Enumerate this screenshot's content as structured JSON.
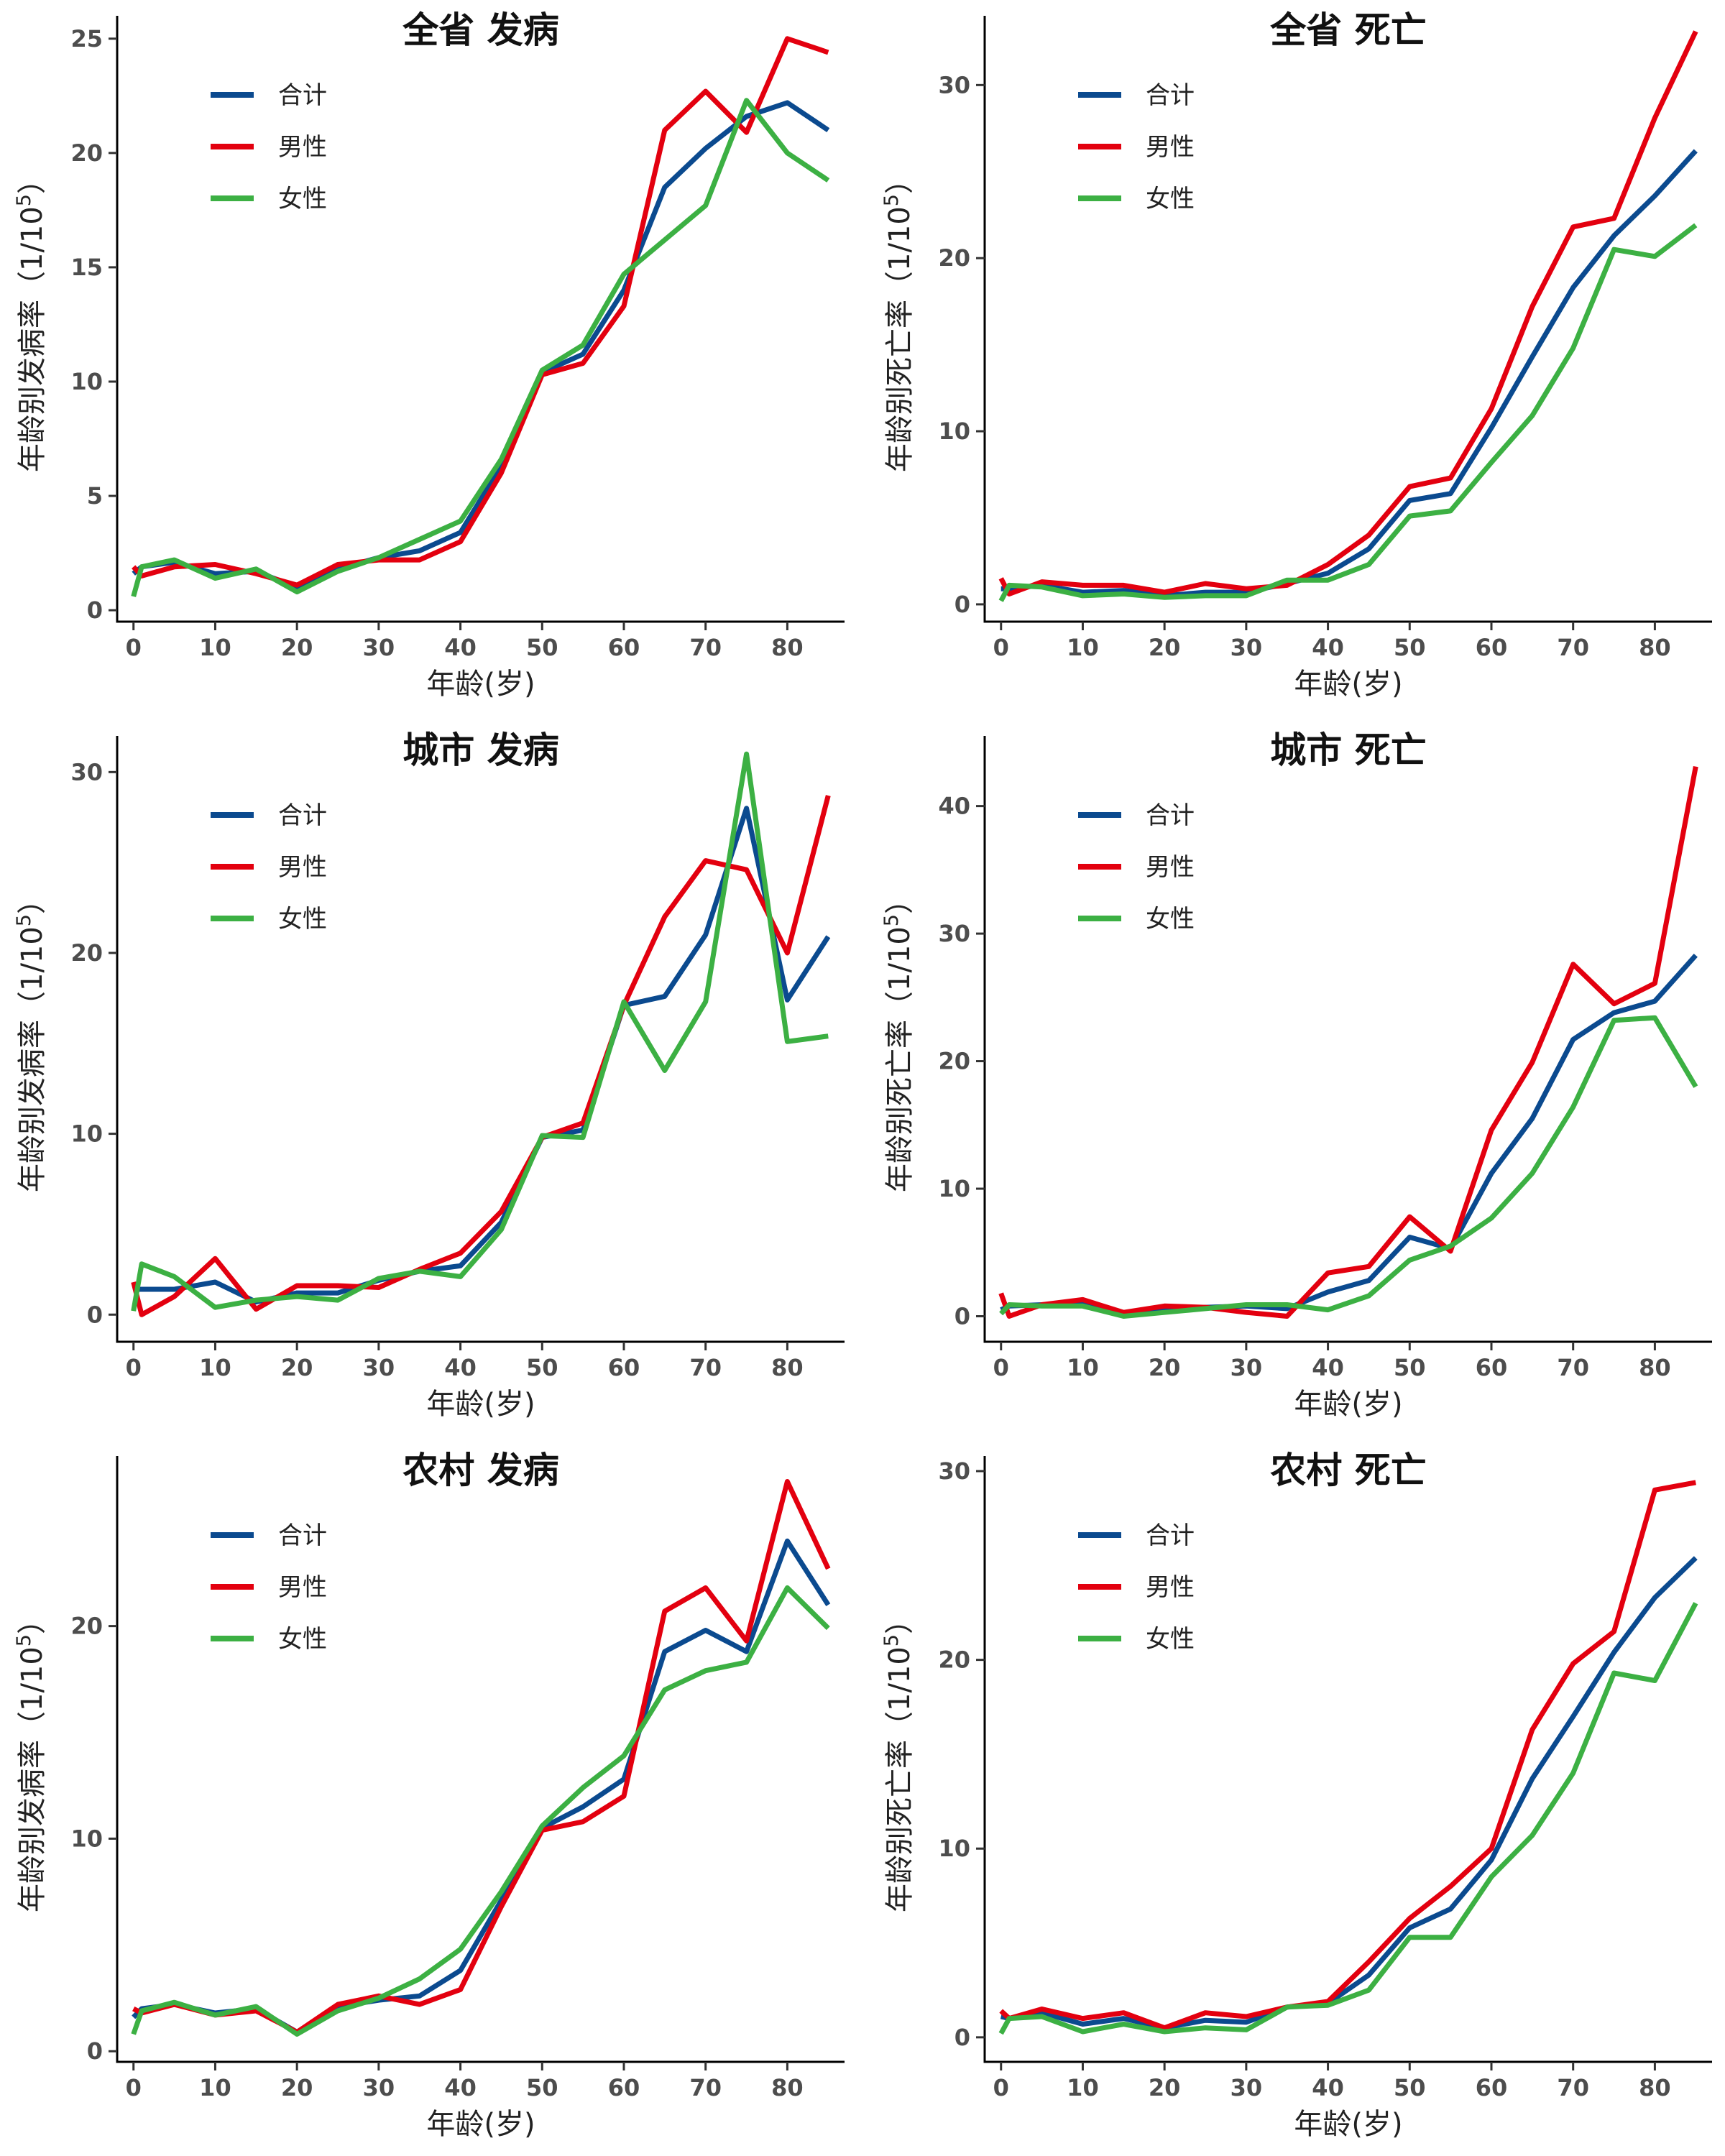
{
  "chart_data": [
    {
      "type": "line",
      "title": "全省 发病",
      "xlabel": "年龄(岁)",
      "ylabel": "年龄别发病率（1/10⁵）",
      "ylabel_main": "年龄别发病率（1/10",
      "ylabel_sup": "5",
      "ylabel_close": "）",
      "xlim": [
        -2,
        87
      ],
      "ylim": [
        -0.5,
        26
      ],
      "xticks": [
        0,
        10,
        20,
        30,
        40,
        50,
        60,
        70,
        80
      ],
      "yticks": [
        0,
        5,
        10,
        15,
        20,
        25
      ],
      "x": [
        0,
        1,
        5,
        10,
        15,
        20,
        25,
        30,
        35,
        40,
        45,
        50,
        55,
        60,
        65,
        70,
        75,
        80,
        85
      ],
      "series": [
        {
          "name": "合计",
          "color": "#0b4a8f",
          "values": [
            1.6,
            1.9,
            2.1,
            1.6,
            1.7,
            1.0,
            1.8,
            2.3,
            2.6,
            3.4,
            6.3,
            10.4,
            11.2,
            14.0,
            18.5,
            20.2,
            21.6,
            22.2,
            21.0
          ]
        },
        {
          "name": "男性",
          "color": "#e3000f",
          "values": [
            1.9,
            1.5,
            1.9,
            2.0,
            1.6,
            1.1,
            2.0,
            2.2,
            2.2,
            3.0,
            6.0,
            10.3,
            10.8,
            13.3,
            21.0,
            22.7,
            20.9,
            25.0,
            24.4
          ]
        },
        {
          "name": "女性",
          "color": "#3cb043",
          "values": [
            0.6,
            1.9,
            2.2,
            1.4,
            1.8,
            0.8,
            1.7,
            2.3,
            3.1,
            3.9,
            6.6,
            10.5,
            11.6,
            14.7,
            16.2,
            17.7,
            22.3,
            20.0,
            18.8
          ]
        }
      ]
    },
    {
      "type": "line",
      "title": "全省 死亡",
      "xlabel": "年龄(岁)",
      "ylabel": "年龄别死亡率（1/10⁵）",
      "ylabel_main": "年龄别死亡率（1/10",
      "ylabel_sup": "5",
      "ylabel_close": "）",
      "xlim": [
        -2,
        87
      ],
      "ylim": [
        -1,
        34
      ],
      "xticks": [
        0,
        10,
        20,
        30,
        40,
        50,
        60,
        70,
        80
      ],
      "yticks": [
        0,
        10,
        20,
        30
      ],
      "x": [
        0,
        1,
        5,
        10,
        15,
        20,
        25,
        30,
        35,
        40,
        45,
        50,
        55,
        60,
        65,
        70,
        75,
        80,
        85
      ],
      "series": [
        {
          "name": "合计",
          "color": "#0b4a8f",
          "values": [
            0.9,
            0.9,
            1.1,
            0.7,
            0.8,
            0.5,
            0.7,
            0.7,
            1.2,
            1.8,
            3.2,
            6.0,
            6.4,
            10.2,
            14.3,
            18.3,
            21.3,
            23.6,
            26.2
          ]
        },
        {
          "name": "男性",
          "color": "#e3000f",
          "values": [
            1.5,
            0.6,
            1.3,
            1.1,
            1.1,
            0.7,
            1.2,
            0.9,
            1.1,
            2.3,
            4.0,
            6.8,
            7.3,
            11.3,
            17.2,
            21.8,
            22.3,
            28.1,
            33.1
          ]
        },
        {
          "name": "女性",
          "color": "#3cb043",
          "values": [
            0.2,
            1.1,
            1.0,
            0.5,
            0.6,
            0.4,
            0.5,
            0.5,
            1.4,
            1.4,
            2.3,
            5.1,
            5.4,
            8.2,
            10.9,
            14.8,
            20.5,
            20.1,
            21.9
          ]
        }
      ]
    },
    {
      "type": "line",
      "title": "城市 发病",
      "xlabel": "年龄(岁)",
      "ylabel": "年龄别发病率（1/10⁵）",
      "ylabel_main": "年龄别发病率（1/10",
      "ylabel_sup": "5",
      "ylabel_close": "）",
      "xlim": [
        -2,
        87
      ],
      "ylim": [
        -1.5,
        32
      ],
      "xticks": [
        0,
        10,
        20,
        30,
        40,
        50,
        60,
        70,
        80
      ],
      "yticks": [
        0,
        10,
        20,
        30
      ],
      "x": [
        0,
        1,
        5,
        10,
        15,
        20,
        25,
        30,
        35,
        40,
        45,
        50,
        55,
        60,
        65,
        70,
        75,
        80,
        85
      ],
      "series": [
        {
          "name": "合计",
          "color": "#0b4a8f",
          "values": [
            1.4,
            1.4,
            1.4,
            1.8,
            0.7,
            1.2,
            1.2,
            1.9,
            2.4,
            2.7,
            5.1,
            9.8,
            10.2,
            17.1,
            17.6,
            21.0,
            28.0,
            17.4,
            20.9
          ]
        },
        {
          "name": "男性",
          "color": "#e3000f",
          "values": [
            1.8,
            0.0,
            1.0,
            3.1,
            0.3,
            1.6,
            1.6,
            1.5,
            2.5,
            3.4,
            5.7,
            9.8,
            10.6,
            17.1,
            22.0,
            25.1,
            24.6,
            20.0,
            28.7
          ]
        },
        {
          "name": "女性",
          "color": "#3cb043",
          "values": [
            0.2,
            2.8,
            2.1,
            0.4,
            0.8,
            1.0,
            0.8,
            2.0,
            2.4,
            2.1,
            4.7,
            9.9,
            9.8,
            17.3,
            13.5,
            17.3,
            31.0,
            15.1,
            15.4
          ]
        }
      ]
    },
    {
      "type": "line",
      "title": "城市 死亡",
      "xlabel": "年龄(岁)",
      "ylabel": "年龄别死亡率（1/10⁵）",
      "ylabel_main": "年龄别死亡率（1/10",
      "ylabel_sup": "5",
      "ylabel_close": "）",
      "xlim": [
        -2,
        87
      ],
      "ylim": [
        -2,
        45.5
      ],
      "xticks": [
        0,
        10,
        20,
        30,
        40,
        50,
        60,
        70,
        80
      ],
      "yticks": [
        0,
        10,
        20,
        30,
        40
      ],
      "x": [
        0,
        1,
        5,
        10,
        15,
        20,
        25,
        30,
        35,
        40,
        45,
        50,
        55,
        60,
        65,
        70,
        75,
        80,
        85
      ],
      "series": [
        {
          "name": "合计",
          "color": "#0b4a8f",
          "values": [
            0.5,
            0.8,
            0.9,
            1.0,
            0.2,
            0.5,
            0.7,
            0.8,
            0.6,
            1.9,
            2.8,
            6.2,
            5.3,
            11.2,
            15.5,
            21.7,
            23.8,
            24.7,
            28.3
          ]
        },
        {
          "name": "男性",
          "color": "#e3000f",
          "values": [
            1.8,
            0.0,
            0.9,
            1.3,
            0.3,
            0.8,
            0.7,
            0.3,
            0.0,
            3.4,
            3.9,
            7.8,
            5.1,
            14.6,
            19.9,
            27.6,
            24.5,
            26.1,
            43.1
          ]
        },
        {
          "name": "女性",
          "color": "#3cb043",
          "values": [
            0.2,
            0.9,
            0.8,
            0.8,
            0.0,
            0.3,
            0.6,
            0.9,
            0.9,
            0.5,
            1.6,
            4.4,
            5.5,
            7.7,
            11.2,
            16.4,
            23.2,
            23.4,
            18.0
          ]
        }
      ]
    },
    {
      "type": "line",
      "title": "农村 发病",
      "xlabel": "年龄(岁)",
      "ylabel": "年龄别发病率（1/10⁵）",
      "ylabel_main": "年龄别发病率（1/10",
      "ylabel_sup": "5",
      "ylabel_close": "）",
      "xlim": [
        -2,
        87
      ],
      "ylim": [
        -0.5,
        28
      ],
      "xticks": [
        0,
        10,
        20,
        30,
        40,
        50,
        60,
        70,
        80
      ],
      "yticks": [
        0,
        10,
        20
      ],
      "x": [
        0,
        1,
        5,
        10,
        15,
        20,
        25,
        30,
        35,
        40,
        45,
        50,
        55,
        60,
        65,
        70,
        75,
        80,
        85
      ],
      "series": [
        {
          "name": "合计",
          "color": "#0b4a8f",
          "values": [
            1.6,
            2.0,
            2.2,
            1.8,
            2.0,
            0.9,
            2.1,
            2.4,
            2.6,
            3.8,
            7.1,
            10.5,
            11.5,
            12.8,
            18.8,
            19.8,
            18.8,
            24.0,
            21.0
          ]
        },
        {
          "name": "男性",
          "color": "#e3000f",
          "values": [
            2.0,
            1.8,
            2.2,
            1.7,
            1.9,
            0.9,
            2.2,
            2.6,
            2.2,
            2.9,
            6.8,
            10.4,
            10.8,
            12.0,
            20.7,
            21.8,
            19.3,
            26.8,
            22.7
          ]
        },
        {
          "name": "女性",
          "color": "#3cb043",
          "values": [
            0.8,
            1.9,
            2.3,
            1.7,
            2.1,
            0.8,
            1.9,
            2.5,
            3.4,
            4.8,
            7.5,
            10.6,
            12.4,
            13.9,
            17.0,
            17.9,
            18.3,
            21.8,
            19.9
          ]
        }
      ]
    },
    {
      "type": "line",
      "title": "农村 死亡",
      "xlabel": "年龄(岁)",
      "ylabel": "年龄别死亡率（1/10⁵）",
      "ylabel_main": "年龄别死亡率（1/10",
      "ylabel_sup": "5",
      "ylabel_close": "）",
      "xlim": [
        -2,
        87
      ],
      "ylim": [
        -1.3,
        30.8
      ],
      "xticks": [
        0,
        10,
        20,
        30,
        40,
        50,
        60,
        70,
        80
      ],
      "yticks": [
        0,
        10,
        20,
        30
      ],
      "x": [
        0,
        1,
        5,
        10,
        15,
        20,
        25,
        30,
        35,
        40,
        45,
        50,
        55,
        60,
        65,
        70,
        75,
        80,
        85
      ],
      "series": [
        {
          "name": "合计",
          "color": "#0b4a8f",
          "values": [
            1.1,
            1.0,
            1.3,
            0.7,
            1.0,
            0.5,
            0.9,
            0.8,
            1.6,
            1.8,
            3.3,
            5.8,
            6.8,
            9.4,
            13.7,
            17.0,
            20.4,
            23.3,
            25.4
          ]
        },
        {
          "name": "男性",
          "color": "#e3000f",
          "values": [
            1.4,
            1.0,
            1.5,
            1.0,
            1.3,
            0.5,
            1.3,
            1.1,
            1.6,
            1.9,
            4.0,
            6.3,
            8.0,
            10.0,
            16.3,
            19.8,
            21.5,
            29.0,
            29.4
          ]
        },
        {
          "name": "女性",
          "color": "#3cb043",
          "values": [
            0.2,
            1.0,
            1.1,
            0.3,
            0.7,
            0.3,
            0.5,
            0.4,
            1.6,
            1.7,
            2.5,
            5.3,
            5.3,
            8.5,
            10.7,
            14.0,
            19.3,
            18.9,
            23.0
          ]
        }
      ]
    }
  ]
}
